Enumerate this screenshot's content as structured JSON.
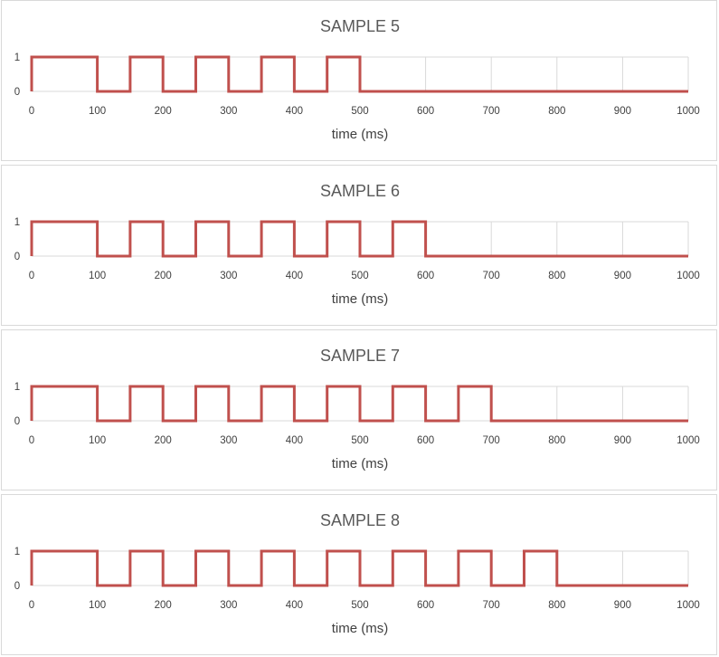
{
  "chart_data": [
    {
      "type": "line",
      "title": "SAMPLE 5",
      "xlabel": "time (ms)",
      "ylabel": "",
      "xlim": [
        0,
        1000
      ],
      "ylim": [
        0,
        1
      ],
      "xticks": [
        "0",
        "100",
        "200",
        "300",
        "400",
        "500",
        "600",
        "700",
        "800",
        "900",
        "1000"
      ],
      "yticks": [
        "1",
        "0"
      ],
      "grid": "vertical",
      "color": "#c0504d",
      "series": [
        {
          "x": [
            0,
            0,
            100,
            100,
            150,
            150,
            200,
            200,
            250,
            250,
            300,
            300,
            350,
            350,
            400,
            400,
            450,
            450,
            500,
            500,
            1000
          ],
          "y": [
            0,
            1,
            1,
            0,
            0,
            1,
            1,
            0,
            0,
            1,
            1,
            0,
            0,
            1,
            1,
            0,
            0,
            1,
            1,
            0,
            0
          ]
        }
      ]
    },
    {
      "type": "line",
      "title": "SAMPLE 6",
      "xlabel": "time (ms)",
      "ylabel": "",
      "xlim": [
        0,
        1000
      ],
      "ylim": [
        0,
        1
      ],
      "xticks": [
        "0",
        "100",
        "200",
        "300",
        "400",
        "500",
        "600",
        "700",
        "800",
        "900",
        "1000"
      ],
      "yticks": [
        "1",
        "0"
      ],
      "grid": "vertical",
      "color": "#c0504d",
      "series": [
        {
          "x": [
            0,
            0,
            100,
            100,
            150,
            150,
            200,
            200,
            250,
            250,
            300,
            300,
            350,
            350,
            400,
            400,
            450,
            450,
            500,
            500,
            550,
            550,
            600,
            600,
            1000
          ],
          "y": [
            0,
            1,
            1,
            0,
            0,
            1,
            1,
            0,
            0,
            1,
            1,
            0,
            0,
            1,
            1,
            0,
            0,
            1,
            1,
            0,
            0,
            1,
            1,
            0,
            0
          ]
        }
      ]
    },
    {
      "type": "line",
      "title": "SAMPLE 7",
      "xlabel": "time (ms)",
      "ylabel": "",
      "xlim": [
        0,
        1000
      ],
      "ylim": [
        0,
        1
      ],
      "xticks": [
        "0",
        "100",
        "200",
        "300",
        "400",
        "500",
        "600",
        "700",
        "800",
        "900",
        "1000"
      ],
      "yticks": [
        "1",
        "0"
      ],
      "grid": "vertical",
      "color": "#c0504d",
      "series": [
        {
          "x": [
            0,
            0,
            100,
            100,
            150,
            150,
            200,
            200,
            250,
            250,
            300,
            300,
            350,
            350,
            400,
            400,
            450,
            450,
            500,
            500,
            550,
            550,
            600,
            600,
            650,
            650,
            700,
            700,
            1000
          ],
          "y": [
            0,
            1,
            1,
            0,
            0,
            1,
            1,
            0,
            0,
            1,
            1,
            0,
            0,
            1,
            1,
            0,
            0,
            1,
            1,
            0,
            0,
            1,
            1,
            0,
            0,
            1,
            1,
            0,
            0
          ]
        }
      ]
    },
    {
      "type": "line",
      "title": "SAMPLE 8",
      "xlabel": "time (ms)",
      "ylabel": "",
      "xlim": [
        0,
        1000
      ],
      "ylim": [
        0,
        1
      ],
      "xticks": [
        "0",
        "100",
        "200",
        "300",
        "400",
        "500",
        "600",
        "700",
        "800",
        "900",
        "1000"
      ],
      "yticks": [
        "1",
        "0"
      ],
      "grid": "vertical",
      "color": "#c0504d",
      "series": [
        {
          "x": [
            0,
            0,
            100,
            100,
            150,
            150,
            200,
            200,
            250,
            250,
            300,
            300,
            350,
            350,
            400,
            400,
            450,
            450,
            500,
            500,
            550,
            550,
            600,
            600,
            650,
            650,
            700,
            700,
            750,
            750,
            800,
            800,
            1000
          ],
          "y": [
            0,
            1,
            1,
            0,
            0,
            1,
            1,
            0,
            0,
            1,
            1,
            0,
            0,
            1,
            1,
            0,
            0,
            1,
            1,
            0,
            0,
            1,
            1,
            0,
            0,
            1,
            1,
            0,
            0,
            1,
            1,
            0,
            0
          ]
        }
      ]
    }
  ]
}
